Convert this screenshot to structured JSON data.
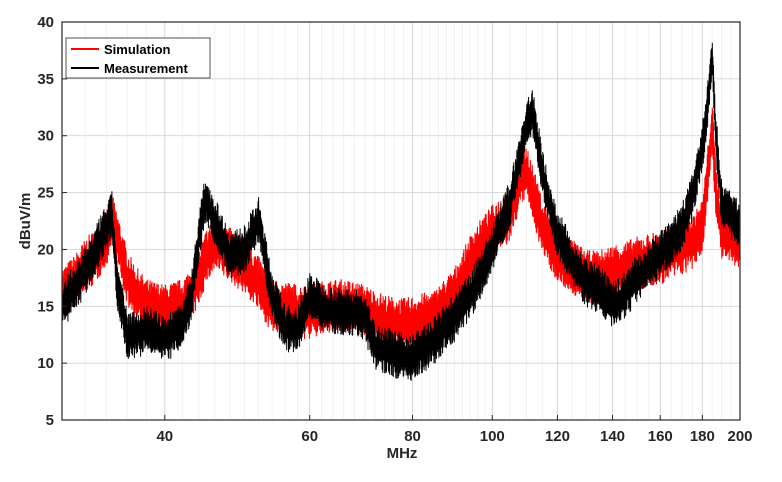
{
  "chart_data": {
    "type": "line",
    "xlabel": "MHz",
    "ylabel": "dBuV/m",
    "x_scale": "log",
    "xlim": [
      30,
      200
    ],
    "ylim": [
      5,
      40
    ],
    "x_ticks": [
      40,
      60,
      80,
      100,
      120,
      140,
      160,
      180,
      200
    ],
    "x_tick_labels": [
      "40",
      "60",
      "80",
      "100",
      "120",
      "140",
      "160",
      "180",
      "200"
    ],
    "y_ticks": [
      5,
      10,
      15,
      20,
      25,
      30,
      35,
      40
    ],
    "y_tick_labels": [
      "5",
      "10",
      "15",
      "20",
      "25",
      "30",
      "35",
      "40"
    ],
    "grid": true,
    "legend_position": "top-left",
    "series": [
      {
        "name": "Simulation",
        "color": "#ff0000",
        "x": [
          30,
          31,
          32,
          33,
          34,
          34.5,
          35,
          36,
          37,
          38,
          40,
          42,
          43,
          44,
          45,
          46,
          48,
          50,
          52,
          54,
          56,
          58,
          60,
          62,
          65,
          68,
          70,
          72,
          75,
          78,
          80,
          85,
          90,
          95,
          100,
          105,
          108,
          110,
          112,
          115,
          118,
          120,
          125,
          130,
          135,
          140,
          145,
          150,
          155,
          160,
          165,
          170,
          175,
          180,
          183,
          185,
          187,
          190,
          195,
          200
        ],
        "y": [
          16,
          17,
          18.5,
          19.5,
          21,
          22.5,
          21,
          17.5,
          16,
          15,
          14.5,
          15,
          16,
          17.5,
          19.5,
          20.5,
          19.5,
          18.5,
          17,
          15,
          14.8,
          14.5,
          14.5,
          14.8,
          15,
          14.8,
          14.5,
          14,
          13.5,
          13.3,
          13.5,
          14,
          16,
          19.5,
          21.5,
          23,
          26,
          27,
          25,
          22,
          20.5,
          19.5,
          18.5,
          17.5,
          17.5,
          18,
          18.3,
          18.7,
          19,
          19.3,
          19.7,
          20.2,
          20.5,
          22,
          27,
          31,
          25,
          21.5,
          21,
          20.5
        ]
      },
      {
        "name": "Measurement",
        "color": "#000000",
        "x": [
          30,
          31,
          32,
          33,
          34,
          34.5,
          35,
          36,
          37,
          38,
          40,
          42,
          43,
          44,
          44.8,
          46,
          48,
          50,
          52,
          54,
          56,
          58,
          60,
          62,
          65,
          68,
          70,
          72,
          75,
          78,
          80,
          85,
          90,
          95,
          100,
          105,
          108,
          110,
          112,
          115,
          118,
          120,
          125,
          130,
          135,
          140,
          145,
          150,
          155,
          160,
          165,
          170,
          175,
          180,
          183,
          185,
          187,
          190,
          195,
          200
        ],
        "y": [
          15,
          16.5,
          18,
          20,
          22,
          23,
          17,
          12.5,
          12.5,
          13,
          12,
          13.5,
          15.5,
          21,
          24.5,
          22.5,
          19.5,
          20,
          22.5,
          16,
          13,
          13,
          16,
          15,
          14.5,
          14.5,
          14,
          11.5,
          11,
          10.5,
          10.5,
          12,
          14,
          16.5,
          20,
          24,
          28,
          31,
          32,
          27,
          23,
          21.5,
          19,
          17,
          16.5,
          15,
          16,
          17.5,
          18.5,
          19.5,
          20.5,
          22,
          24.5,
          29,
          33,
          37,
          30,
          24,
          23,
          22
        ]
      }
    ]
  }
}
